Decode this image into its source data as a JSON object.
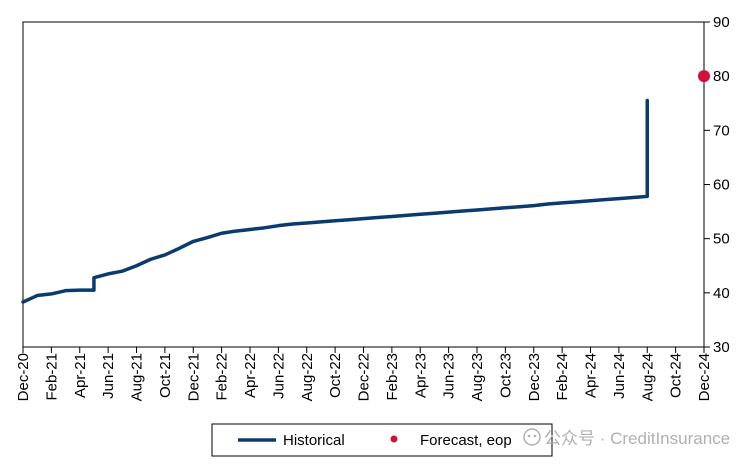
{
  "chart_data": {
    "type": "line",
    "x_categories": [
      "Dec-20",
      "Feb-21",
      "Apr-21",
      "Jun-21",
      "Aug-21",
      "Oct-21",
      "Dec-21",
      "Feb-22",
      "Apr-22",
      "Jun-22",
      "Aug-22",
      "Oct-22",
      "Dec-22",
      "Feb-23",
      "Apr-23",
      "Jun-23",
      "Aug-23",
      "Oct-23",
      "Dec-23",
      "Feb-24",
      "Apr-24",
      "Jun-24",
      "Aug-24",
      "Oct-24",
      "Dec-24"
    ],
    "ylim": [
      30,
      90
    ],
    "yticks": [
      30,
      40,
      50,
      60,
      70,
      80,
      90
    ],
    "y_axis_side": "right",
    "grid": false,
    "legend_position": "bottom",
    "series": [
      {
        "name": "Historical",
        "color": "#0b3a6f",
        "style": "line",
        "points": [
          [
            "Dec-20",
            38.3
          ],
          [
            "Jan-21",
            39.5
          ],
          [
            "Feb-21",
            39.8
          ],
          [
            "Mar-21",
            40.4
          ],
          [
            "Apr-21",
            40.5
          ],
          [
            "May-21",
            40.5
          ],
          [
            "May-21",
            42.8
          ],
          [
            "Jun-21",
            43.5
          ],
          [
            "Jul-21",
            44.0
          ],
          [
            "Aug-21",
            45.0
          ],
          [
            "Sep-21",
            46.2
          ],
          [
            "Oct-21",
            47.0
          ],
          [
            "Nov-21",
            48.2
          ],
          [
            "Dec-21",
            49.5
          ],
          [
            "Jan-22",
            50.2
          ],
          [
            "Feb-22",
            51.0
          ],
          [
            "Mar-22",
            51.4
          ],
          [
            "Apr-22",
            51.7
          ],
          [
            "May-22",
            52.0
          ],
          [
            "Jun-22",
            52.4
          ],
          [
            "Jul-22",
            52.7
          ],
          [
            "Aug-22",
            52.9
          ],
          [
            "Sep-22",
            53.1
          ],
          [
            "Oct-22",
            53.3
          ],
          [
            "Nov-22",
            53.5
          ],
          [
            "Dec-22",
            53.7
          ],
          [
            "Jan-23",
            53.9
          ],
          [
            "Feb-23",
            54.1
          ],
          [
            "Mar-23",
            54.3
          ],
          [
            "Apr-23",
            54.5
          ],
          [
            "May-23",
            54.7
          ],
          [
            "Jun-23",
            54.9
          ],
          [
            "Jul-23",
            55.1
          ],
          [
            "Aug-23",
            55.3
          ],
          [
            "Sep-23",
            55.5
          ],
          [
            "Oct-23",
            55.7
          ],
          [
            "Nov-23",
            55.9
          ],
          [
            "Dec-23",
            56.1
          ],
          [
            "Jan-24",
            56.4
          ],
          [
            "Feb-24",
            56.6
          ],
          [
            "Mar-24",
            56.8
          ],
          [
            "Apr-24",
            57.0
          ],
          [
            "May-24",
            57.2
          ],
          [
            "Jun-24",
            57.4
          ],
          [
            "Jul-24",
            57.6
          ],
          [
            "Aug-24",
            57.8
          ],
          [
            "Aug-24",
            75.5
          ]
        ]
      },
      {
        "name": "Forecast, eop",
        "color": "#d0103a",
        "style": "marker",
        "points": [
          [
            "Dec-24",
            80
          ]
        ]
      }
    ]
  },
  "legend": {
    "items": [
      {
        "label": "Historical",
        "swatch": "line",
        "color": "#0b3a6f"
      },
      {
        "label": "Forecast, eop",
        "swatch": "dot",
        "color": "#d0103a"
      }
    ]
  },
  "watermark": {
    "text": "公众号 · CreditInsurance"
  }
}
